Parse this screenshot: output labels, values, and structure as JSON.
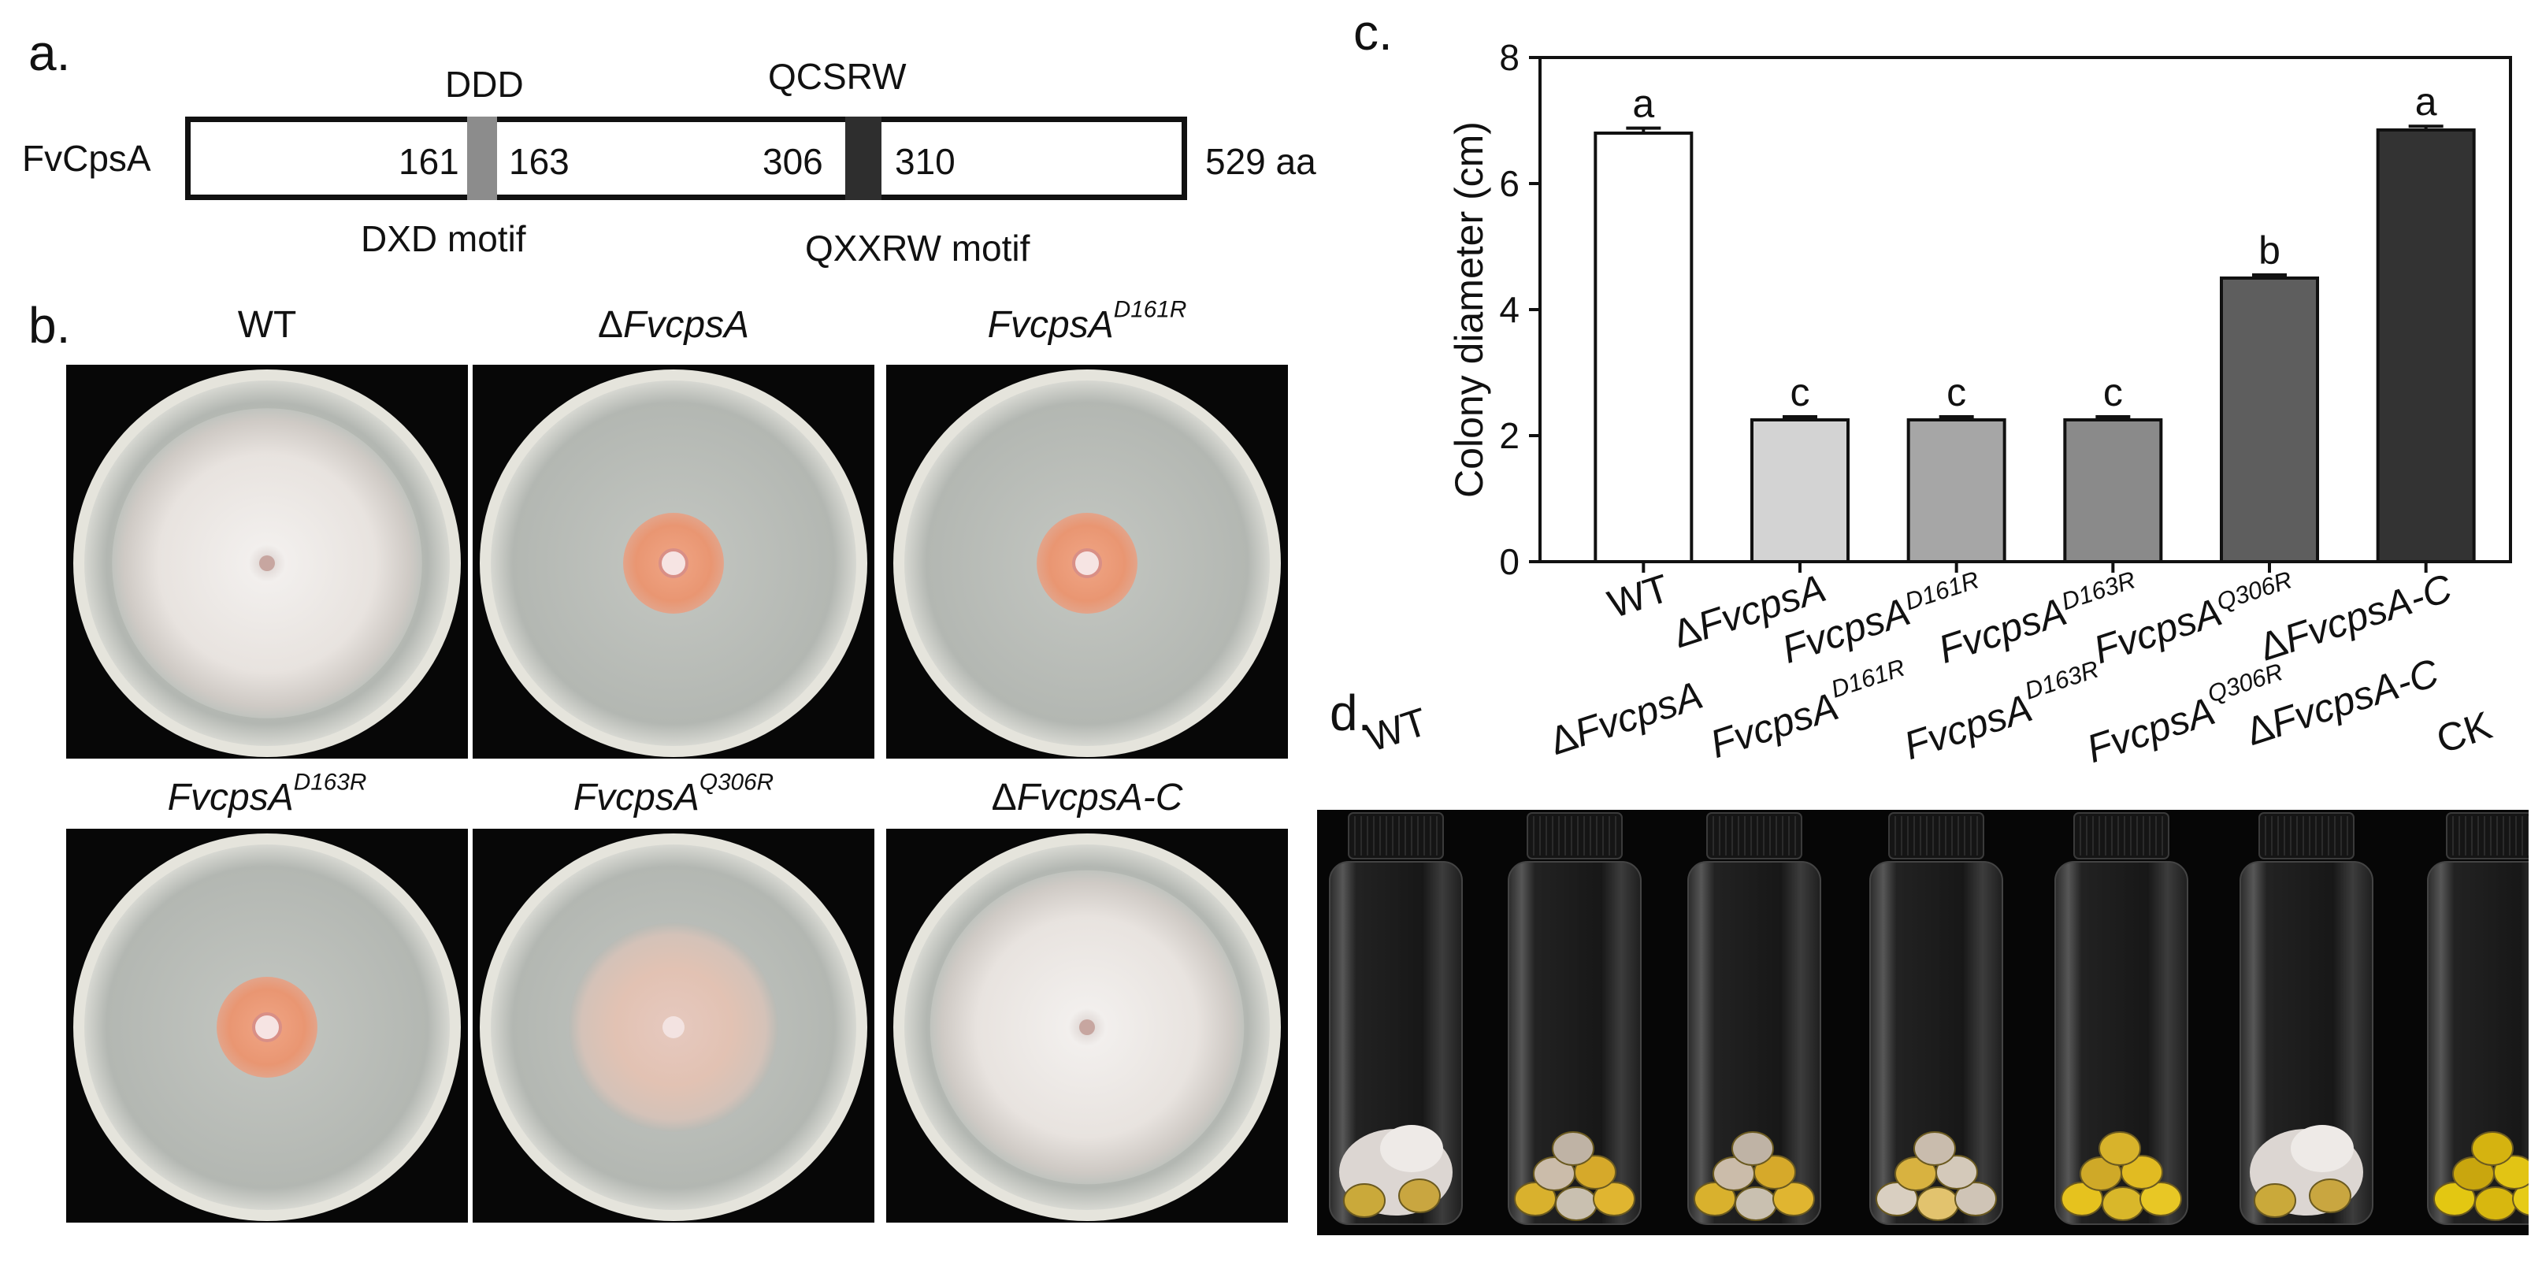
{
  "panels": {
    "a": "a.",
    "b": "b.",
    "c": "c.",
    "d": "d."
  },
  "protein": {
    "name": "FvCpsA",
    "length": "529 aa",
    "motif1": {
      "top": "DDD",
      "bottom": "DXD motif",
      "start": "161",
      "end": "163",
      "color": "#8c8c8c"
    },
    "motif2": {
      "top": "QCSRW",
      "bottom": "QXXRW motif",
      "start": "306",
      "end": "310",
      "color": "#333333"
    }
  },
  "dishes": [
    {
      "prefix": "",
      "name": "WT",
      "sup": "",
      "suffix": "",
      "italic": false,
      "colony_type": "fluffy-white",
      "colony_fraction": 0.8
    },
    {
      "prefix": "Δ",
      "name": "FvcpsA",
      "sup": "",
      "suffix": "",
      "italic": true,
      "colony_type": "orange-small",
      "colony_fraction": 0.26
    },
    {
      "prefix": "",
      "name": "FvcpsA",
      "sup": "D161R",
      "suffix": "",
      "italic": true,
      "colony_type": "orange-small",
      "colony_fraction": 0.26
    },
    {
      "prefix": "",
      "name": "FvcpsA",
      "sup": "D163R",
      "suffix": "",
      "italic": true,
      "colony_type": "orange-small",
      "colony_fraction": 0.26
    },
    {
      "prefix": "",
      "name": "FvcpsA",
      "sup": "Q306R",
      "suffix": "",
      "italic": true,
      "colony_type": "pinkish-medium",
      "colony_fraction": 0.54
    },
    {
      "prefix": "Δ",
      "name": "FvcpsA",
      "sup": "",
      "suffix": "-C",
      "italic": true,
      "colony_type": "fluffy-white",
      "colony_fraction": 0.81
    }
  ],
  "chart_data": {
    "type": "bar",
    "ylabel": "Colony diameter  (cm)",
    "ylim": [
      0,
      8
    ],
    "yticks": [
      "0",
      "2",
      "4",
      "6",
      "8"
    ],
    "categories": [
      {
        "prefix": "",
        "name": "WT",
        "sup": "",
        "suffix": "",
        "italic": false
      },
      {
        "prefix": "Δ",
        "name": "FvcpsA",
        "sup": "",
        "suffix": "",
        "italic": true
      },
      {
        "prefix": "",
        "name": "FvcpsA",
        "sup": "D161R",
        "suffix": "",
        "italic": true
      },
      {
        "prefix": "",
        "name": "FvcpsA",
        "sup": "D163R",
        "suffix": "",
        "italic": true
      },
      {
        "prefix": "",
        "name": "FvcpsA",
        "sup": "Q306R",
        "suffix": "",
        "italic": true
      },
      {
        "prefix": "Δ",
        "name": "FvcpsA",
        "sup": "",
        "suffix": "-C",
        "italic": true
      }
    ],
    "values": [
      6.8,
      2.25,
      2.25,
      2.25,
      4.5,
      6.85
    ],
    "errors": [
      0.08,
      0.05,
      0.05,
      0.05,
      0.05,
      0.06
    ],
    "significance": [
      "a",
      "c",
      "c",
      "c",
      "b",
      "a"
    ],
    "bar_colors": [
      "#ffffff",
      "#d3d3d3",
      "#a6a6a6",
      "#8a8a8a",
      "#5e5e5e",
      "#333333"
    ],
    "grid": false
  },
  "vials": [
    {
      "prefix": "",
      "name": "WT",
      "sup": "",
      "suffix": "",
      "italic": false,
      "contents": "white-mycelium"
    },
    {
      "prefix": "Δ",
      "name": "FvcpsA",
      "sup": "",
      "suffix": "",
      "italic": true,
      "contents": "kernels-partial"
    },
    {
      "prefix": "",
      "name": "FvcpsA",
      "sup": "D161R",
      "suffix": "",
      "italic": true,
      "contents": "kernels-partial"
    },
    {
      "prefix": "",
      "name": "FvcpsA",
      "sup": "D163R",
      "suffix": "",
      "italic": true,
      "contents": "kernels-pale"
    },
    {
      "prefix": "",
      "name": "FvcpsA",
      "sup": "Q306R",
      "suffix": "",
      "italic": true,
      "contents": "kernels-yellow"
    },
    {
      "prefix": "Δ",
      "name": "FvcpsA",
      "sup": "",
      "suffix": "-C",
      "italic": true,
      "contents": "white-mycelium"
    },
    {
      "prefix": "",
      "name": "CK",
      "sup": "",
      "suffix": "",
      "italic": false,
      "contents": "kernels-clean"
    }
  ]
}
